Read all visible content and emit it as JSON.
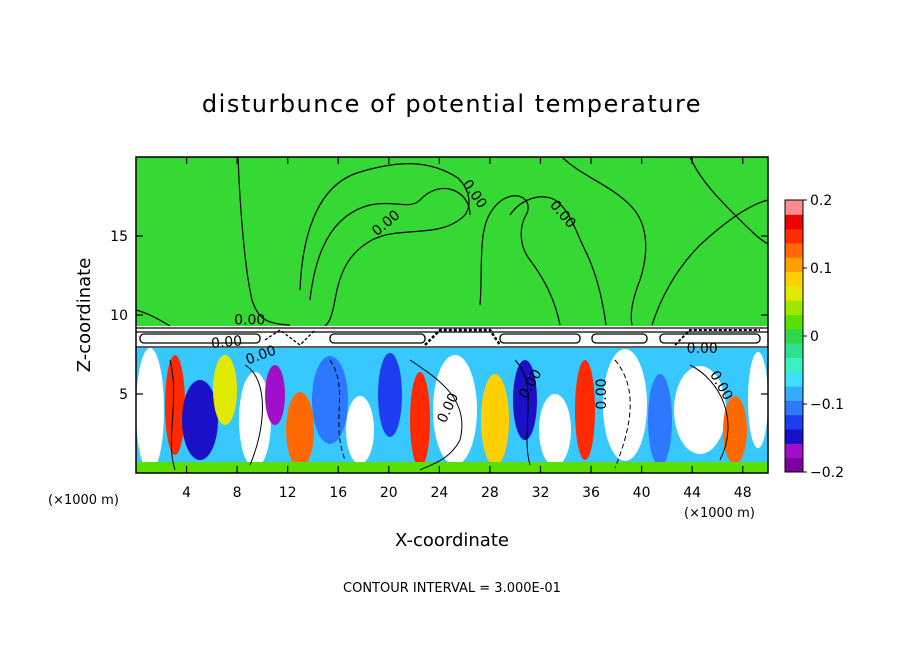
{
  "chart_data": {
    "type": "heatmap",
    "title": "disturbunce of potential temperature",
    "xlabel": "X-coordinate",
    "ylabel": "Z-coordinate",
    "x_unit_note": "(×1000 m)",
    "z_unit_note": "(×1000 m)",
    "xlim": [
      0,
      50
    ],
    "ylim": [
      0,
      20
    ],
    "x_ticks": [
      4,
      8,
      12,
      16,
      20,
      24,
      28,
      32,
      36,
      40,
      44,
      48
    ],
    "y_ticks": [
      5,
      10,
      15
    ],
    "footer": "CONTOUR INTERVAL = 3.000E-01",
    "colorbar": {
      "min": -0.2,
      "max": 0.2,
      "tick_values": [
        0.2,
        0.1,
        0,
        -0.1,
        -0.2
      ],
      "tick_labels": [
        "0.2",
        "0.1",
        "0",
        "−0.1",
        "−0.2"
      ],
      "colors": [
        "#7a00a0",
        "#a010c8",
        "#1a10c8",
        "#1e3cf0",
        "#2d78ff",
        "#36aaff",
        "#3ce0ff",
        "#38f0c0",
        "#30e090",
        "#2ed84a",
        "#5ae000",
        "#a0e600",
        "#e0ea00",
        "#ffd000",
        "#ffa000",
        "#ff6a00",
        "#ff2a00",
        "#f00000",
        "#ff8c8c"
      ]
    },
    "contour_labels": [
      {
        "text": "0.00",
        "x": 9.0,
        "z": 9.4,
        "angle": 0
      },
      {
        "text": "0.00",
        "x": 7.2,
        "z": 8.0,
        "angle": -5
      },
      {
        "text": "0.00",
        "x": 10.0,
        "z": 7.2,
        "angle": -20
      },
      {
        "text": "0.00",
        "x": 20.0,
        "z": 15.6,
        "angle": -40
      },
      {
        "text": "0.00",
        "x": 26.5,
        "z": 17.5,
        "angle": 55
      },
      {
        "text": "0.00",
        "x": 33.5,
        "z": 16.2,
        "angle": 50
      },
      {
        "text": "0.00",
        "x": 44.8,
        "z": 7.6,
        "angle": 0
      },
      {
        "text": "0.00",
        "x": 25.0,
        "z": 4.0,
        "angle": -65
      },
      {
        "text": "0.00",
        "x": 31.5,
        "z": 5.5,
        "angle": -60
      },
      {
        "text": "0.00",
        "x": 37.2,
        "z": 5.0,
        "angle": -90
      },
      {
        "text": "0.00",
        "x": 46.0,
        "z": 5.4,
        "angle": 60
      }
    ]
  }
}
